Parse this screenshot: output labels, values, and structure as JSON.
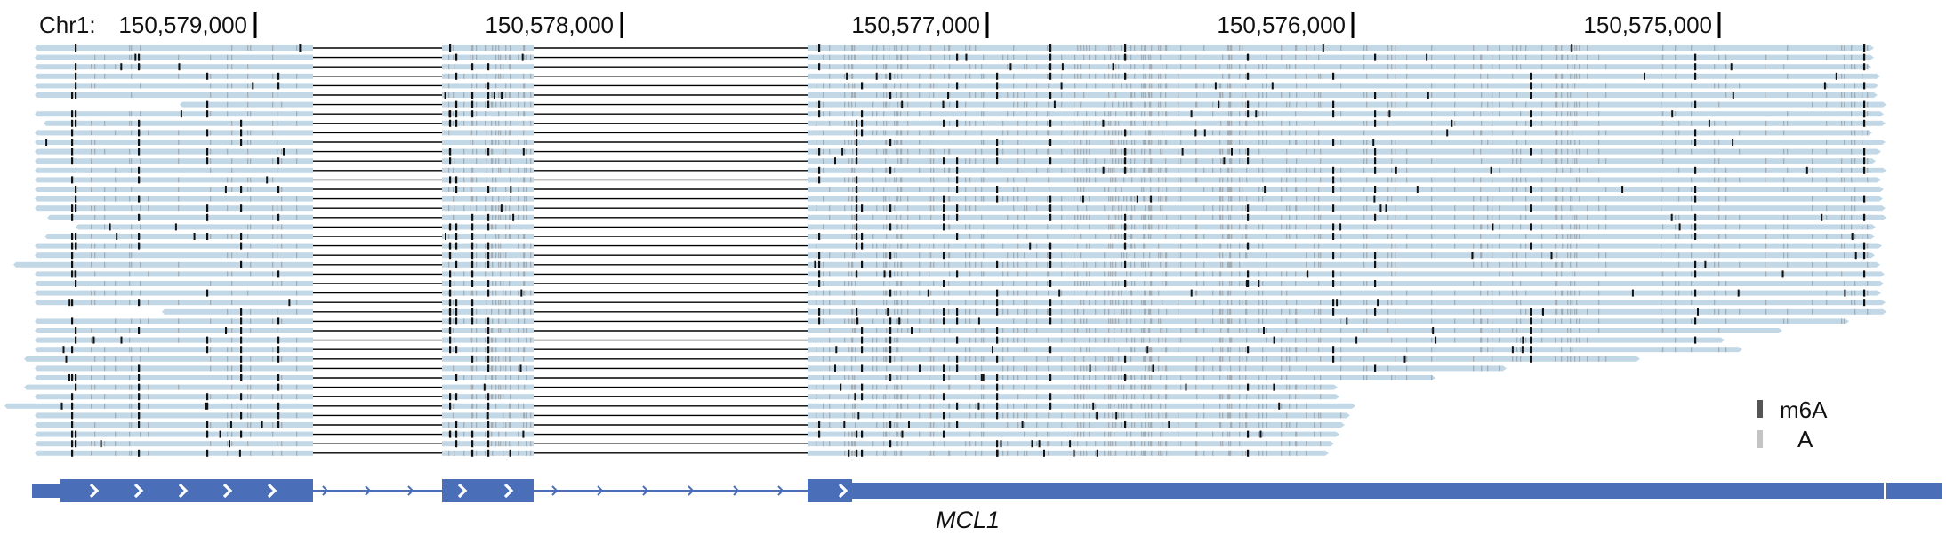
{
  "header": {
    "chrom_label": "Chr1:",
    "ticks": [
      {
        "label": "150,579,000",
        "pos": 150579000
      },
      {
        "label": "150,578,000",
        "pos": 150578000
      },
      {
        "label": "150,577,000",
        "pos": 150577000
      },
      {
        "label": "150,576,000",
        "pos": 150576000
      },
      {
        "label": "150,575,000",
        "pos": 150575000
      }
    ]
  },
  "legend": {
    "items": [
      {
        "label": "m6A",
        "color": "#555555"
      },
      {
        "label": "A",
        "color": "#c4c4c4"
      }
    ]
  },
  "gene": {
    "name": "MCL1",
    "color": "#4a6fb8"
  },
  "colors": {
    "read": "#c3d8e7",
    "intron_line": "#000000",
    "m6a_mark": "#111111",
    "a_mark": "#9aa0a6"
  }
}
